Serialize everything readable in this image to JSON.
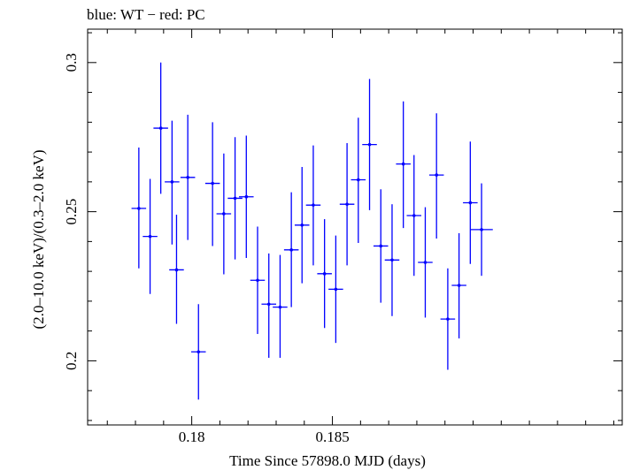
{
  "header": {
    "text": "blue: WT − red: PC"
  },
  "chart_data": {
    "type": "scatter",
    "title": "",
    "xlabel": "Time Since 57898.0 MJD (days)",
    "ylabel": "(2.0–10.0 keV)/(0.3–2.0 keV)",
    "xlim": [
      0.1763,
      0.1953
    ],
    "ylim": [
      0.1785,
      0.3112
    ],
    "x_ticks": [
      0.18,
      0.185
    ],
    "x_tick_labels": [
      "0.18",
      "0.185"
    ],
    "y_ticks": [
      0.2,
      0.25,
      0.3
    ],
    "y_tick_labels": [
      "0.2",
      "0.25",
      "0.3"
    ],
    "grid": false,
    "series": [
      {
        "name": "WT",
        "color": "#0000ff",
        "points": [
          {
            "x": 0.17812,
            "y": 0.2511,
            "xerr": 0.00026,
            "ylo": 0.231,
            "yhi": 0.2715
          },
          {
            "x": 0.17852,
            "y": 0.2417,
            "xerr": 0.00026,
            "ylo": 0.2224,
            "yhi": 0.261
          },
          {
            "x": 0.1789,
            "y": 0.278,
            "xerr": 0.00026,
            "ylo": 0.256,
            "yhi": 0.3
          },
          {
            "x": 0.1793,
            "y": 0.26,
            "xerr": 0.00026,
            "ylo": 0.239,
            "yhi": 0.2805
          },
          {
            "x": 0.17946,
            "y": 0.2305,
            "xerr": 0.00026,
            "ylo": 0.2124,
            "yhi": 0.249
          },
          {
            "x": 0.17986,
            "y": 0.2615,
            "xerr": 0.00026,
            "ylo": 0.2405,
            "yhi": 0.2825
          },
          {
            "x": 0.18024,
            "y": 0.203,
            "xerr": 0.00026,
            "ylo": 0.187,
            "yhi": 0.219
          },
          {
            "x": 0.18074,
            "y": 0.2595,
            "xerr": 0.00026,
            "ylo": 0.2385,
            "yhi": 0.28
          },
          {
            "x": 0.18114,
            "y": 0.2493,
            "xerr": 0.00026,
            "ylo": 0.229,
            "yhi": 0.2695
          },
          {
            "x": 0.18154,
            "y": 0.2545,
            "xerr": 0.00026,
            "ylo": 0.234,
            "yhi": 0.275
          },
          {
            "x": 0.18194,
            "y": 0.255,
            "xerr": 0.00026,
            "ylo": 0.2345,
            "yhi": 0.2755
          },
          {
            "x": 0.18234,
            "y": 0.227,
            "xerr": 0.00026,
            "ylo": 0.209,
            "yhi": 0.245
          },
          {
            "x": 0.18274,
            "y": 0.219,
            "xerr": 0.00026,
            "ylo": 0.201,
            "yhi": 0.236
          },
          {
            "x": 0.18314,
            "y": 0.218,
            "xerr": 0.00026,
            "ylo": 0.201,
            "yhi": 0.2355
          },
          {
            "x": 0.18354,
            "y": 0.2372,
            "xerr": 0.00026,
            "ylo": 0.218,
            "yhi": 0.2565
          },
          {
            "x": 0.18392,
            "y": 0.2455,
            "xerr": 0.00026,
            "ylo": 0.226,
            "yhi": 0.265
          },
          {
            "x": 0.18432,
            "y": 0.2522,
            "xerr": 0.00026,
            "ylo": 0.232,
            "yhi": 0.2722
          },
          {
            "x": 0.18472,
            "y": 0.2292,
            "xerr": 0.00026,
            "ylo": 0.211,
            "yhi": 0.2475
          },
          {
            "x": 0.18512,
            "y": 0.224,
            "xerr": 0.00026,
            "ylo": 0.206,
            "yhi": 0.242
          },
          {
            "x": 0.18552,
            "y": 0.2525,
            "xerr": 0.00026,
            "ylo": 0.232,
            "yhi": 0.273
          },
          {
            "x": 0.18592,
            "y": 0.2607,
            "xerr": 0.00026,
            "ylo": 0.2395,
            "yhi": 0.2815
          },
          {
            "x": 0.18632,
            "y": 0.2725,
            "xerr": 0.00026,
            "ylo": 0.2505,
            "yhi": 0.2945
          },
          {
            "x": 0.18672,
            "y": 0.2385,
            "xerr": 0.00026,
            "ylo": 0.2195,
            "yhi": 0.2575
          },
          {
            "x": 0.18712,
            "y": 0.2338,
            "xerr": 0.00026,
            "ylo": 0.215,
            "yhi": 0.2525
          },
          {
            "x": 0.18752,
            "y": 0.266,
            "xerr": 0.00026,
            "ylo": 0.2445,
            "yhi": 0.287
          },
          {
            "x": 0.1879,
            "y": 0.2487,
            "xerr": 0.00026,
            "ylo": 0.2285,
            "yhi": 0.269
          },
          {
            "x": 0.1883,
            "y": 0.233,
            "xerr": 0.00026,
            "ylo": 0.2145,
            "yhi": 0.2515
          },
          {
            "x": 0.1887,
            "y": 0.2623,
            "xerr": 0.00026,
            "ylo": 0.241,
            "yhi": 0.283
          },
          {
            "x": 0.1891,
            "y": 0.214,
            "xerr": 0.00026,
            "ylo": 0.197,
            "yhi": 0.231
          },
          {
            "x": 0.1895,
            "y": 0.2253,
            "xerr": 0.00026,
            "ylo": 0.2075,
            "yhi": 0.2428
          },
          {
            "x": 0.1899,
            "y": 0.253,
            "xerr": 0.00026,
            "ylo": 0.2325,
            "yhi": 0.2735
          },
          {
            "x": 0.1903,
            "y": 0.244,
            "xerr": 0.0004,
            "ylo": 0.2285,
            "yhi": 0.2595
          }
        ]
      }
    ]
  }
}
